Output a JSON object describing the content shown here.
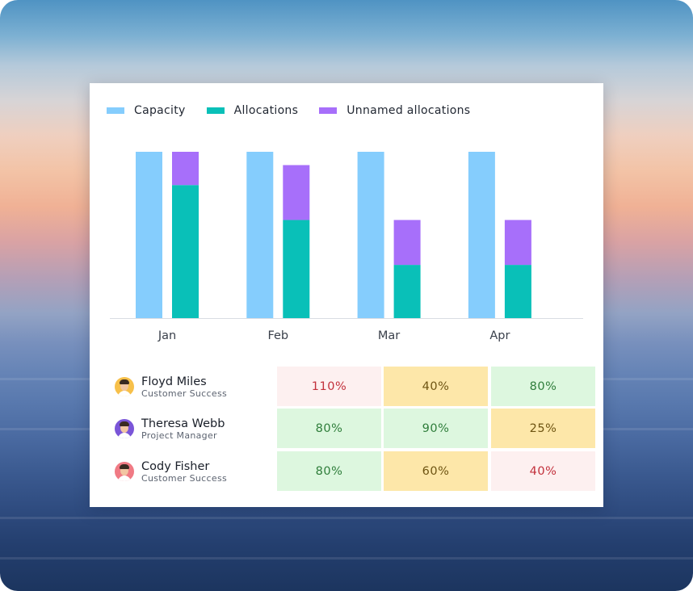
{
  "chart_data": {
    "type": "bar",
    "categories": [
      "Jan",
      "Feb",
      "Mar",
      "Apr"
    ],
    "ylim": [
      0,
      100
    ],
    "series": [
      {
        "name": "Capacity",
        "stack": "capacity",
        "values": [
          100,
          100,
          100,
          100
        ]
      },
      {
        "name": "Allocations",
        "stack": "allocated",
        "values": [
          80,
          59,
          32,
          32
        ]
      },
      {
        "name": "Unnamed allocations",
        "stack": "allocated",
        "values": [
          20,
          33,
          27,
          27
        ]
      }
    ],
    "title": "",
    "xlabel": "",
    "ylabel": "",
    "legend": "top-left",
    "grid": false
  },
  "legend": [
    {
      "label": "Capacity",
      "color": "#85cdfd"
    },
    {
      "label": "Allocations",
      "color": "#09c0b8"
    },
    {
      "label": "Unnamed allocations",
      "color": "#a76ffa"
    }
  ],
  "people": [
    {
      "name": "Floyd Miles",
      "role": "Customer Success",
      "avatar_color": "#f7c04a",
      "avatar_icon": "user-avatar-icon"
    },
    {
      "name": "Theresa Webb",
      "role": "Project Manager",
      "avatar_color": "#7a55d8",
      "avatar_icon": "user-avatar-icon"
    },
    {
      "name": "Cody Fisher",
      "role": "Customer Success",
      "avatar_color": "#f07a84",
      "avatar_icon": "user-avatar-icon"
    }
  ],
  "grid": [
    [
      {
        "value": "110%",
        "status": "red"
      },
      {
        "value": "40%",
        "status": "yellow"
      },
      {
        "value": "80%",
        "status": "green"
      }
    ],
    [
      {
        "value": "80%",
        "status": "green"
      },
      {
        "value": "90%",
        "status": "green"
      },
      {
        "value": "25%",
        "status": "yellow"
      }
    ],
    [
      {
        "value": "80%",
        "status": "green"
      },
      {
        "value": "60%",
        "status": "yellow"
      },
      {
        "value": "40%",
        "status": "red"
      }
    ]
  ]
}
